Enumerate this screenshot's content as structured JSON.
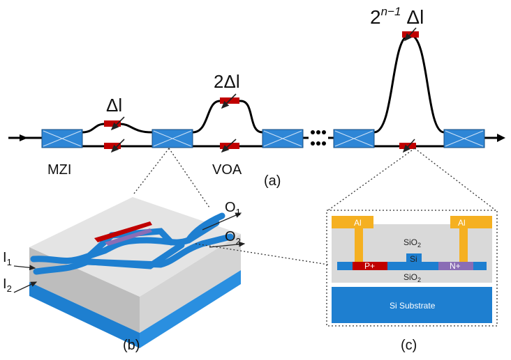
{
  "panel_a": {
    "delays": [
      "Δl",
      "2Δl"
    ],
    "last_delay": {
      "base": "2",
      "exponent": "n−1",
      "suffix": "Δl"
    },
    "mzi_label": "MZI",
    "voa_label": "VOA",
    "caption": "(a)"
  },
  "panel_b": {
    "outputs": [
      {
        "letter": "O",
        "index": "1"
      },
      {
        "letter": "O",
        "index": "2"
      }
    ],
    "inputs": [
      {
        "letter": "I",
        "index": "1"
      },
      {
        "letter": "I",
        "index": "2"
      }
    ],
    "caption": "(b)"
  },
  "panel_c": {
    "metal_left": "Al",
    "metal_right": "Al",
    "upper_oxide": {
      "base": "SiO",
      "index": "2"
    },
    "core": "Si",
    "p_doped": "P+",
    "n_doped": "N+",
    "lower_oxide": {
      "base": "SiO",
      "index": "2"
    },
    "substrate": "Si Substrate",
    "caption": "(c)"
  }
}
